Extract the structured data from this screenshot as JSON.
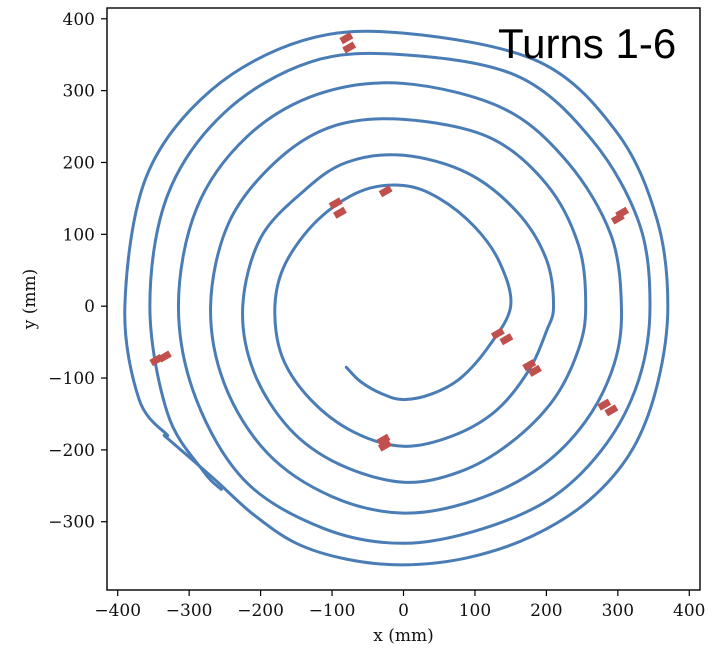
{
  "chart_data": {
    "type": "line",
    "title": "",
    "annotation": "Turns 1-6",
    "xlabel": "x (mm)",
    "ylabel": "y (mm)",
    "xlim": [
      -415,
      415
    ],
    "ylim": [
      -395,
      415
    ],
    "xticks": [
      -400,
      -300,
      -200,
      -100,
      0,
      100,
      200,
      300,
      400
    ],
    "yticks": [
      -300,
      -200,
      -100,
      0,
      100,
      200,
      300,
      400
    ],
    "xtick_labels": [
      "−400",
      "−300",
      "−200",
      "−100",
      "0",
      "100",
      "200",
      "300",
      "400"
    ],
    "ytick_labels": [
      "−300",
      "−200",
      "−100",
      "0",
      "100",
      "200",
      "300",
      "400"
    ],
    "grid": false,
    "colors": {
      "spiral": "#4a7db5",
      "markers": "#c0504d",
      "axes": "#000000"
    },
    "series": [
      {
        "points": [
          [
            -80,
            -85
          ],
          [
            -60,
            -105
          ],
          [
            -30,
            -122
          ],
          [
            0,
            -130
          ],
          [
            40,
            -122
          ],
          [
            80,
            -100
          ],
          [
            120,
            -55
          ],
          [
            150,
            0
          ],
          [
            135,
            60
          ],
          [
            100,
            110
          ],
          [
            50,
            150
          ],
          [
            0,
            168
          ],
          [
            -60,
            160
          ],
          [
            -120,
            120
          ],
          [
            -165,
            60
          ],
          [
            -180,
            0
          ],
          [
            -170,
            -70
          ],
          [
            -130,
            -130
          ],
          [
            -70,
            -175
          ],
          [
            0,
            -195
          ],
          [
            70,
            -180
          ],
          [
            130,
            -145
          ],
          [
            175,
            -90
          ],
          [
            200,
            -35
          ],
          [
            210,
            0
          ],
          [
            200,
            65
          ],
          [
            160,
            130
          ],
          [
            90,
            185
          ],
          [
            0,
            210
          ],
          [
            -80,
            200
          ],
          [
            -140,
            160
          ],
          [
            -200,
            95
          ],
          [
            -225,
            0
          ],
          [
            -210,
            -90
          ],
          [
            -160,
            -170
          ],
          [
            -90,
            -220
          ],
          [
            0,
            -245
          ],
          [
            80,
            -230
          ],
          [
            150,
            -190
          ],
          [
            210,
            -130
          ],
          [
            245,
            -60
          ],
          [
            255,
            0
          ],
          [
            245,
            85
          ],
          [
            200,
            170
          ],
          [
            120,
            235
          ],
          [
            0,
            260
          ],
          [
            -100,
            250
          ],
          [
            -180,
            200
          ],
          [
            -245,
            115
          ],
          [
            -270,
            0
          ],
          [
            -250,
            -110
          ],
          [
            -190,
            -205
          ],
          [
            -100,
            -265
          ],
          [
            0,
            -288
          ],
          [
            100,
            -270
          ],
          [
            190,
            -225
          ],
          [
            255,
            -160
          ],
          [
            295,
            -80
          ],
          [
            305,
            0
          ],
          [
            290,
            100
          ],
          [
            230,
            200
          ],
          [
            140,
            275
          ],
          [
            0,
            310
          ],
          [
            -120,
            295
          ],
          [
            -220,
            235
          ],
          [
            -290,
            135
          ],
          [
            -315,
            0
          ],
          [
            -290,
            -130
          ],
          [
            -220,
            -245
          ],
          [
            -110,
            -310
          ],
          [
            0,
            -330
          ],
          [
            110,
            -310
          ],
          [
            210,
            -265
          ],
          [
            285,
            -190
          ],
          [
            330,
            -100
          ],
          [
            345,
            0
          ],
          [
            330,
            115
          ],
          [
            265,
            230
          ],
          [
            160,
            320
          ],
          [
            0,
            350
          ],
          [
            -130,
            340
          ],
          [
            -250,
            270
          ],
          [
            -330,
            155
          ],
          [
            -355,
            0
          ],
          [
            -330,
            -150
          ],
          [
            -280,
            -230
          ],
          [
            -255,
            -255
          ]
        ]
      },
      {
        "points": [
          [
            -335,
            -180
          ],
          [
            -300,
            -210
          ],
          [
            -260,
            -245
          ],
          [
            -210,
            -290
          ],
          [
            -150,
            -330
          ],
          [
            -80,
            -352
          ],
          [
            0,
            -360
          ],
          [
            90,
            -350
          ],
          [
            180,
            -320
          ],
          [
            260,
            -270
          ],
          [
            320,
            -200
          ],
          [
            355,
            -110
          ],
          [
            370,
            0
          ],
          [
            355,
            120
          ],
          [
            300,
            240
          ],
          [
            190,
            340
          ],
          [
            0,
            380
          ],
          [
            -140,
            370
          ],
          [
            -270,
            300
          ],
          [
            -360,
            180
          ],
          [
            -390,
            0
          ],
          [
            -370,
            -130
          ],
          [
            -330,
            -180
          ]
        ]
      }
    ],
    "markers": [
      {
        "x": -80,
        "y": 373
      },
      {
        "x": -76,
        "y": 360
      },
      {
        "x": -95,
        "y": 143
      },
      {
        "x": -89,
        "y": 130
      },
      {
        "x": -25,
        "y": 160
      },
      {
        "x": 300,
        "y": 122
      },
      {
        "x": 306,
        "y": 130
      },
      {
        "x": -346,
        "y": -75
      },
      {
        "x": -334,
        "y": -70
      },
      {
        "x": 132,
        "y": -38
      },
      {
        "x": 144,
        "y": -46
      },
      {
        "x": 176,
        "y": -82
      },
      {
        "x": 184,
        "y": -90
      },
      {
        "x": -28,
        "y": -186
      },
      {
        "x": -26,
        "y": -194
      },
      {
        "x": 281,
        "y": -137
      },
      {
        "x": 291,
        "y": -145
      }
    ]
  }
}
